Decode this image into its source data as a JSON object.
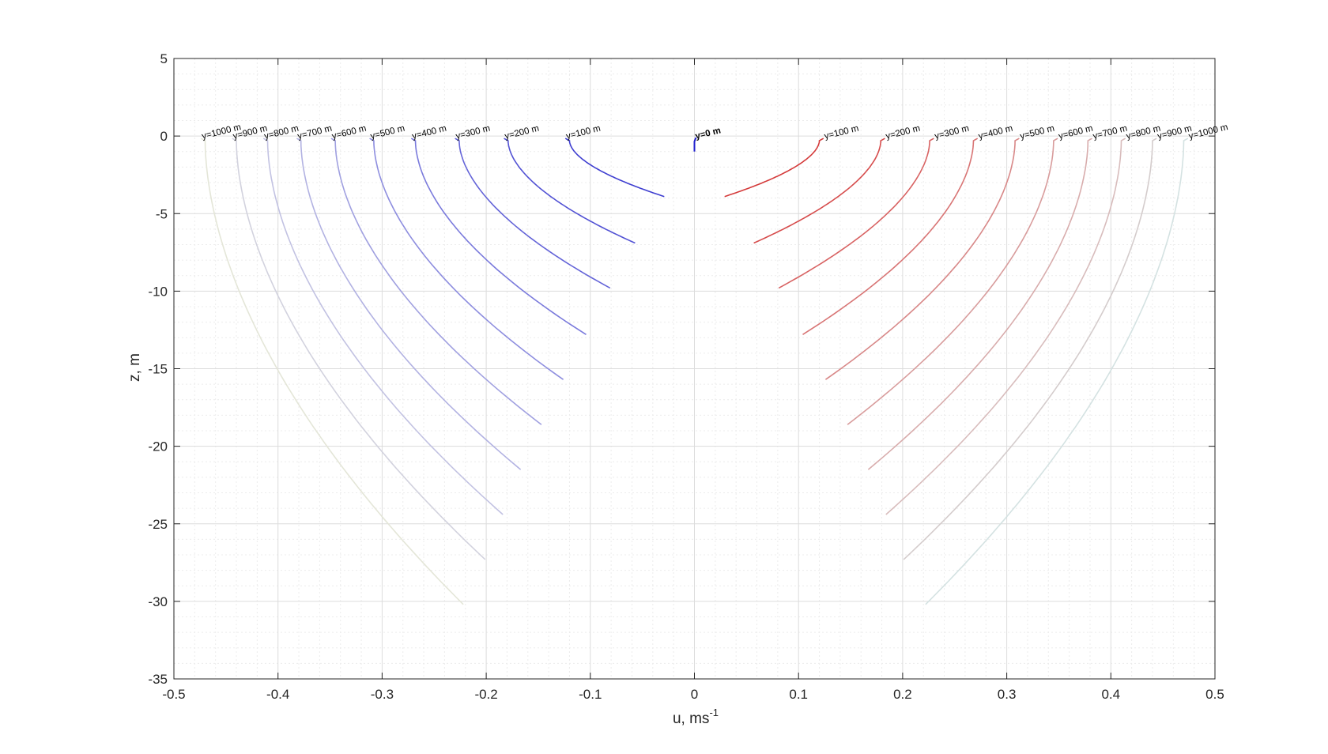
{
  "chart_data": {
    "type": "line",
    "title": "",
    "xlabel": "u, ms",
    "xlabel_sup": "-1",
    "ylabel": "z, m",
    "xlim": [
      -0.5,
      0.5
    ],
    "ylim": [
      -35,
      5
    ],
    "xticks": [
      -0.5,
      -0.4,
      -0.3,
      -0.2,
      -0.1,
      0,
      0.1,
      0.2,
      0.3,
      0.4,
      0.5
    ],
    "xtick_labels": [
      "-0.5",
      "-0.4",
      "-0.3",
      "-0.2",
      "-0.1",
      "0",
      "0.1",
      "0.2",
      "0.3",
      "0.4",
      "0.5"
    ],
    "yticks": [
      5,
      0,
      -5,
      -10,
      -15,
      -20,
      -25,
      -30,
      -35
    ],
    "ytick_labels": [
      "5",
      "0",
      "-5",
      "-10",
      "-15",
      "-20",
      "-25",
      "-30",
      "-35"
    ],
    "grid": "major and minor",
    "legend": "none",
    "series": [
      {
        "label": "y=1000 m",
        "side": "left",
        "color": "#e4e6d8",
        "u_top": -0.47,
        "u_bottom": -0.222,
        "z_bottom": -30.2
      },
      {
        "label": "y=900 m",
        "side": "left",
        "color": "#d2d2de",
        "u_top": -0.44,
        "u_bottom": -0.201,
        "z_bottom": -27.3
      },
      {
        "label": "y=800 m",
        "side": "left",
        "color": "#c2c2e2",
        "u_top": -0.41,
        "u_bottom": -0.184,
        "z_bottom": -24.4
      },
      {
        "label": "y=700 m",
        "side": "left",
        "color": "#b2b2e2",
        "u_top": -0.378,
        "u_bottom": -0.167,
        "z_bottom": -21.5
      },
      {
        "label": "y=600 m",
        "side": "left",
        "color": "#a0a0e0",
        "u_top": -0.345,
        "u_bottom": -0.147,
        "z_bottom": -18.6
      },
      {
        "label": "y=500 m",
        "side": "left",
        "color": "#8e8edf",
        "u_top": -0.308,
        "u_bottom": -0.126,
        "z_bottom": -15.7
      },
      {
        "label": "y=400 m",
        "side": "left",
        "color": "#7a7adc",
        "u_top": -0.268,
        "u_bottom": -0.104,
        "z_bottom": -12.8
      },
      {
        "label": "y=300 m",
        "side": "left",
        "color": "#6464d8",
        "u_top": -0.226,
        "u_bottom": -0.081,
        "z_bottom": -9.8
      },
      {
        "label": "y=200 m",
        "side": "left",
        "color": "#5252d4",
        "u_top": -0.179,
        "u_bottom": -0.057,
        "z_bottom": -6.9
      },
      {
        "label": "y=100 m",
        "side": "left",
        "color": "#3e3ed0",
        "u_top": -0.12,
        "u_bottom": -0.029,
        "z_bottom": -3.9
      },
      {
        "label": "y=0 m",
        "side": "center",
        "color": "#1f1fcc",
        "u_top": 0.0,
        "u_bottom": 0.0,
        "z_bottom": -1.0
      },
      {
        "label": "y=100 m",
        "side": "right",
        "color": "#d43a3a",
        "u_top": 0.12,
        "u_bottom": 0.029,
        "z_bottom": -3.9
      },
      {
        "label": "y=200 m",
        "side": "right",
        "color": "#d64c4c",
        "u_top": 0.179,
        "u_bottom": 0.057,
        "z_bottom": -6.9
      },
      {
        "label": "y=300 m",
        "side": "right",
        "color": "#d86262",
        "u_top": 0.226,
        "u_bottom": 0.081,
        "z_bottom": -9.8
      },
      {
        "label": "y=400 m",
        "side": "right",
        "color": "#d87474",
        "u_top": 0.268,
        "u_bottom": 0.104,
        "z_bottom": -12.8
      },
      {
        "label": "y=500 m",
        "side": "right",
        "color": "#d88888",
        "u_top": 0.308,
        "u_bottom": 0.126,
        "z_bottom": -15.7
      },
      {
        "label": "y=600 m",
        "side": "right",
        "color": "#d89c9c",
        "u_top": 0.345,
        "u_bottom": 0.147,
        "z_bottom": -18.6
      },
      {
        "label": "y=700 m",
        "side": "right",
        "color": "#d8acac",
        "u_top": 0.378,
        "u_bottom": 0.167,
        "z_bottom": -21.5
      },
      {
        "label": "y=800 m",
        "side": "right",
        "color": "#d8bcbc",
        "u_top": 0.41,
        "u_bottom": 0.184,
        "z_bottom": -24.4
      },
      {
        "label": "y=900 m",
        "side": "right",
        "color": "#d4cccc",
        "u_top": 0.44,
        "u_bottom": 0.201,
        "z_bottom": -27.3
      },
      {
        "label": "y=1000 m",
        "side": "right",
        "color": "#d4e2e2",
        "u_top": 0.47,
        "u_bottom": 0.222,
        "z_bottom": -30.2
      }
    ]
  },
  "colors": {
    "axis": "#262626",
    "grid_major": "#dcdcdc",
    "grid_minor": "#ececec",
    "label_text": "#000000"
  }
}
